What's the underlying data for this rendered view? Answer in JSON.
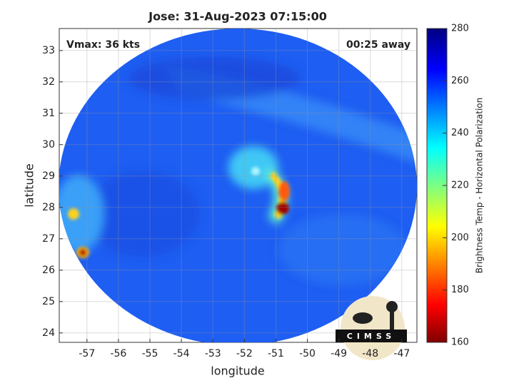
{
  "chart_data": {
    "type": "image",
    "title": "Jose: 31-Aug-2023 07:15:00",
    "xlabel": "longitude",
    "ylabel": "latitude",
    "xlim": [
      -57.88,
      -46.52
    ],
    "ylim": [
      23.7,
      33.7
    ],
    "xticks": [
      -57,
      -56,
      -55,
      -54,
      -53,
      -52,
      -51,
      -50,
      -49,
      -48,
      -47
    ],
    "yticks": [
      24,
      25,
      26,
      27,
      28,
      29,
      30,
      31,
      32,
      33
    ],
    "grid": true,
    "annotations": [
      "Vmax: 36 kts",
      "00:25 away"
    ],
    "colorbar": {
      "label": "Brightness Temp - Horizontal Polarization",
      "lim": [
        160,
        280
      ],
      "ticks": [
        160,
        180,
        200,
        220,
        240,
        260,
        280
      ]
    },
    "logo": "CIMSS"
  }
}
